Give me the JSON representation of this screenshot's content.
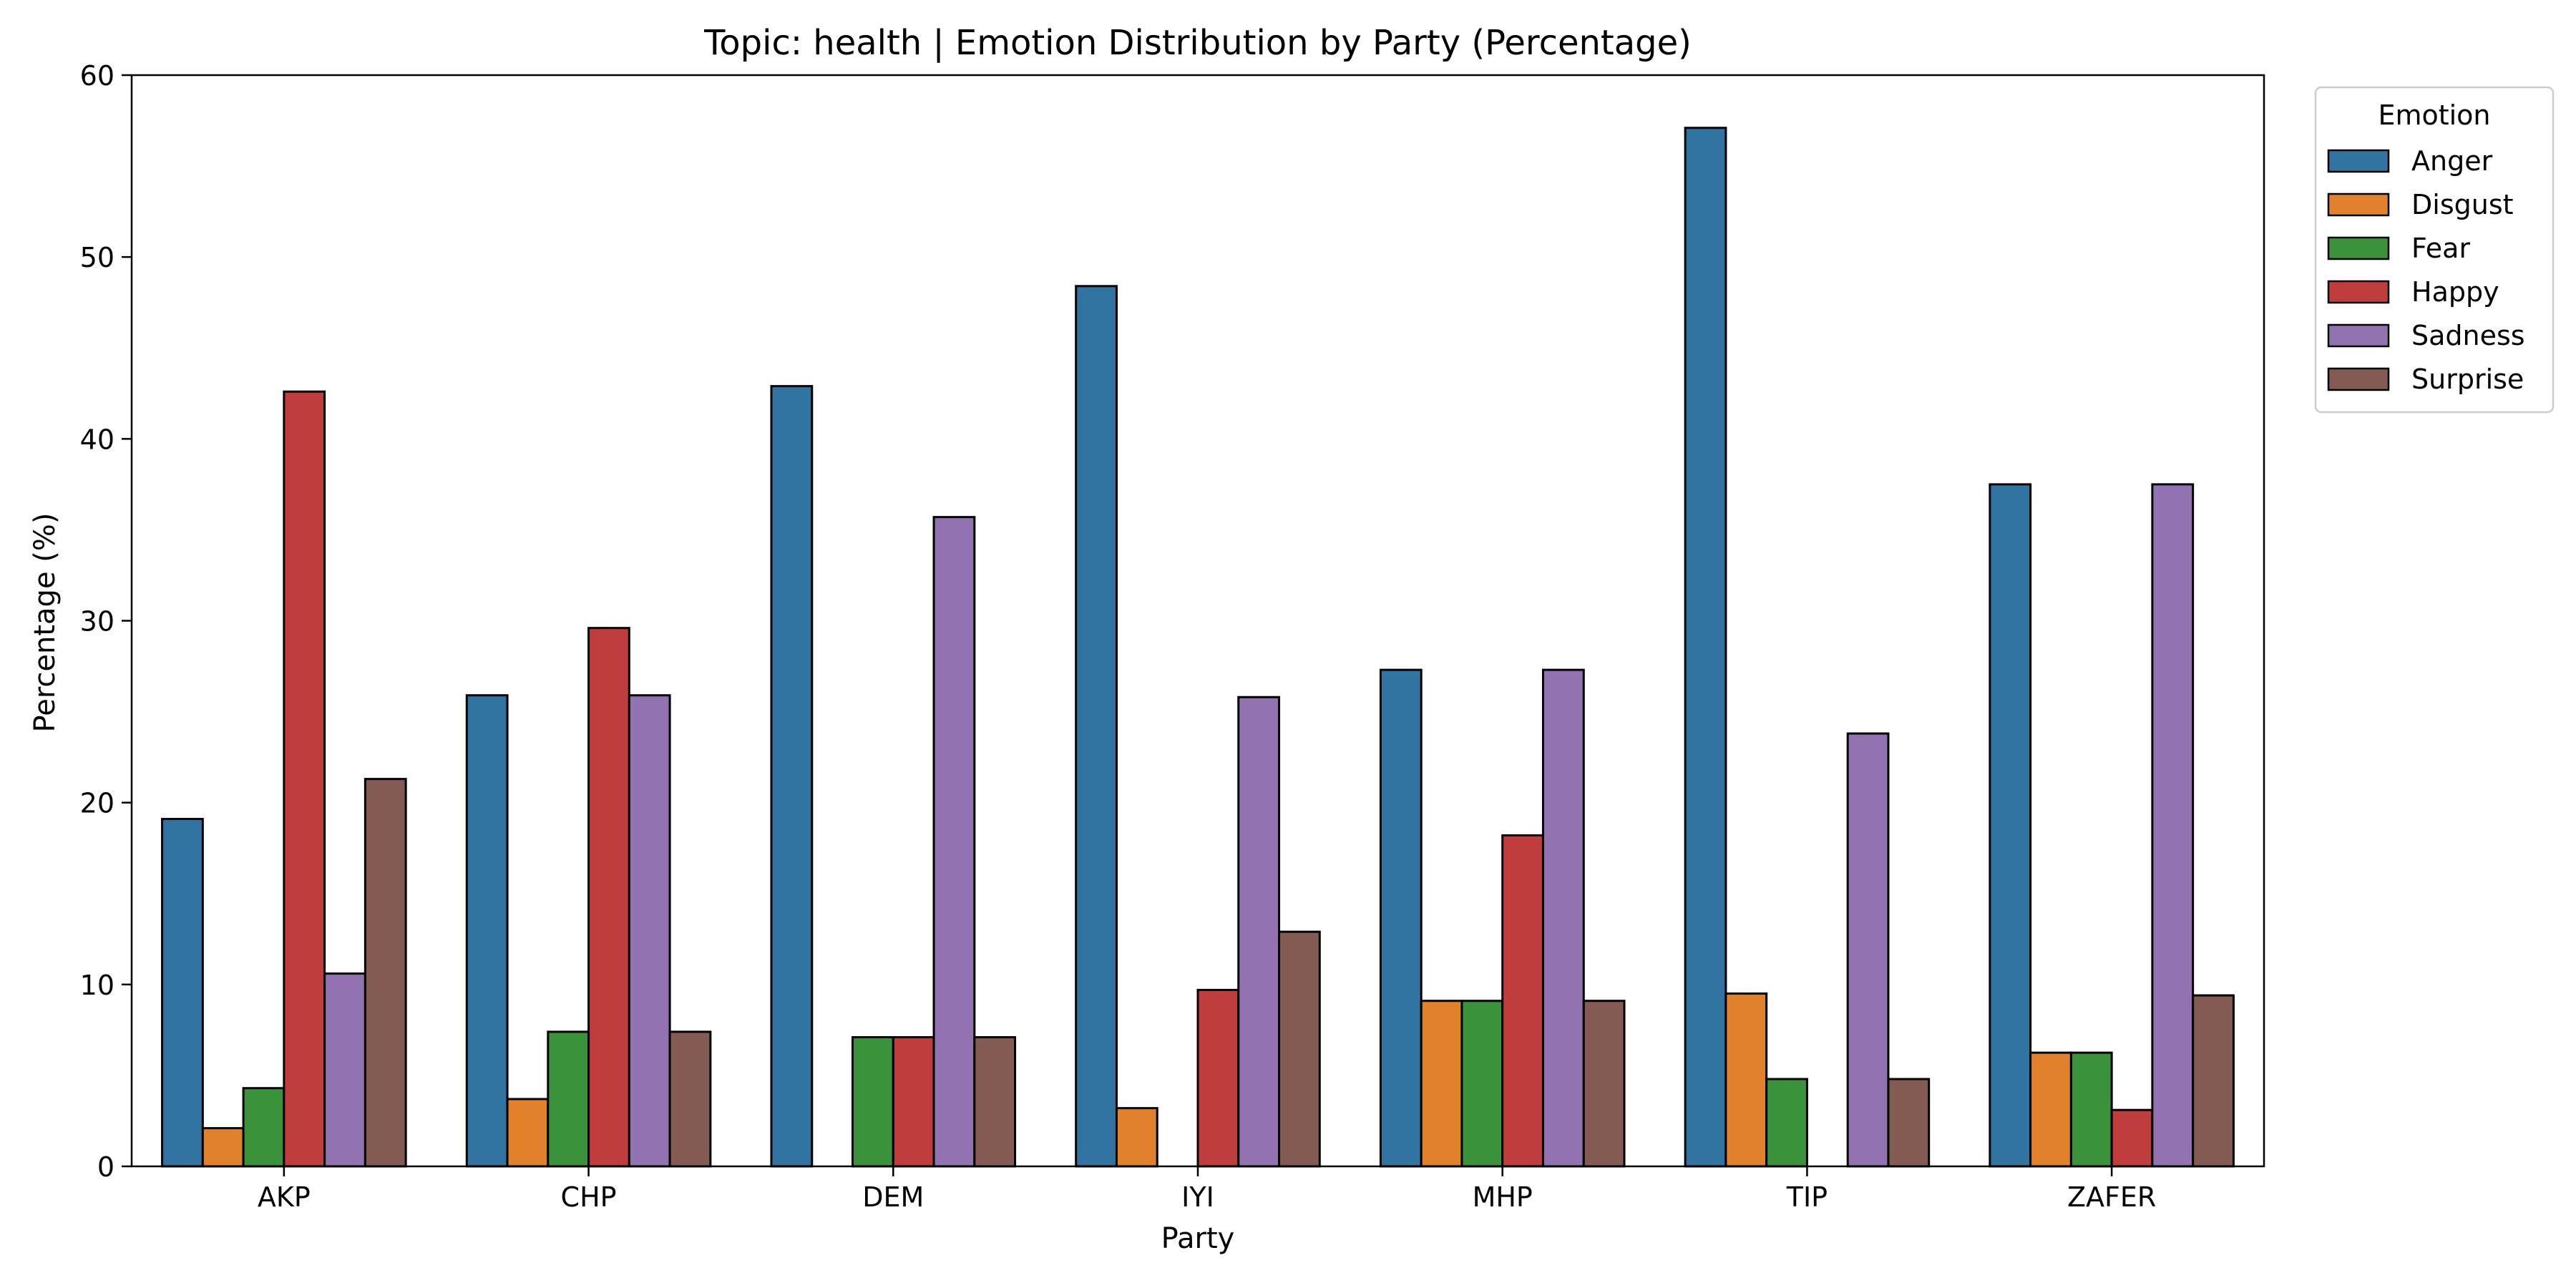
{
  "chart_data": {
    "type": "bar",
    "title": "Topic: health | Emotion Distribution by Party (Percentage)",
    "xlabel": "Party",
    "ylabel": "Percentage (%)",
    "ylim": [
      0,
      60
    ],
    "yticks": [
      0,
      10,
      20,
      30,
      40,
      50,
      60
    ],
    "grid": false,
    "categories": [
      "AKP",
      "CHP",
      "DEM",
      "IYI",
      "MHP",
      "TIP",
      "ZAFER"
    ],
    "legend": {
      "title": "Emotion",
      "placement": "outside-upper-right"
    },
    "series": [
      {
        "name": "Anger",
        "color": "#3274a1",
        "values": [
          19.1,
          25.9,
          42.9,
          48.4,
          27.3,
          57.1,
          37.5
        ]
      },
      {
        "name": "Disgust",
        "color": "#e1812c",
        "values": [
          2.1,
          3.7,
          0,
          3.2,
          9.1,
          9.5,
          6.25
        ]
      },
      {
        "name": "Fear",
        "color": "#3a923a",
        "values": [
          4.3,
          7.4,
          7.1,
          0,
          9.1,
          4.8,
          6.25
        ]
      },
      {
        "name": "Happy",
        "color": "#c03d3e",
        "values": [
          42.6,
          29.6,
          7.1,
          9.7,
          18.2,
          0,
          3.1
        ]
      },
      {
        "name": "Sadness",
        "color": "#9372b2",
        "values": [
          10.6,
          25.9,
          35.7,
          25.8,
          27.3,
          23.8,
          37.5
        ]
      },
      {
        "name": "Surprise",
        "color": "#845b53",
        "values": [
          21.3,
          7.4,
          7.1,
          12.9,
          9.1,
          4.8,
          9.4
        ]
      }
    ]
  }
}
